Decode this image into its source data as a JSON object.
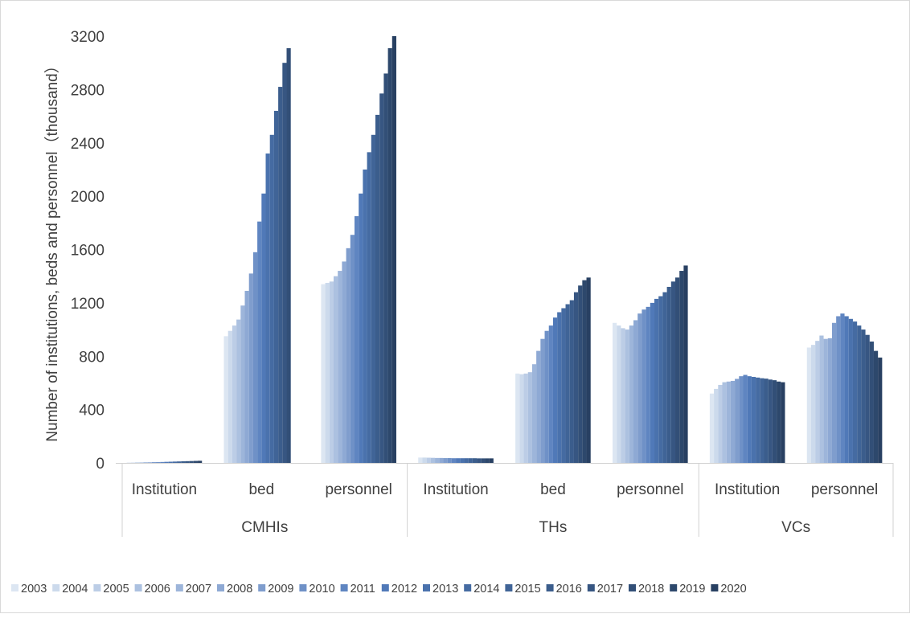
{
  "chart_data": {
    "type": "bar",
    "ylabel": "Number of institutions, beds and personnel（thousand）",
    "ylim": [
      0,
      3200
    ],
    "yticks": [
      0,
      400,
      800,
      1200,
      1600,
      2000,
      2400,
      2800,
      3200
    ],
    "grid": false,
    "legend_position": "bottom",
    "years": [
      "2003",
      "2004",
      "2005",
      "2006",
      "2007",
      "2008",
      "2009",
      "2010",
      "2011",
      "2012",
      "2013",
      "2014",
      "2015",
      "2016",
      "2017",
      "2018",
      "2019",
      "2020"
    ],
    "year_colors": [
      "#dce6f2",
      "#ccdaec",
      "#bccde6",
      "#acc1e0",
      "#9db5da",
      "#8ea9d4",
      "#7f9dcd",
      "#6f91c7",
      "#5f85c1",
      "#5079b8",
      "#4a72ad",
      "#456ba2",
      "#406497",
      "#3b5d8c",
      "#375682",
      "#324f77",
      "#2d486c",
      "#284062"
    ],
    "groups": [
      {
        "name": "CMHIs",
        "categories": [
          {
            "label": "Institution",
            "values": [
              3,
              3,
              4,
              4,
              5,
              5,
              6,
              6,
              7,
              8,
              9,
              10,
              11,
              12,
              13,
              14,
              15,
              16
            ]
          },
          {
            "label": "bed",
            "values": [
              950,
              990,
              1030,
              1075,
              1180,
              1290,
              1420,
              1580,
              1810,
              2020,
              2320,
              2460,
              2640,
              2820,
              3000,
              3110,
              null,
              null
            ]
          },
          {
            "label": "personnel",
            "values": [
              1340,
              1350,
              1360,
              1400,
              1440,
              1510,
              1610,
              1710,
              1850,
              2020,
              2200,
              2330,
              2460,
              2610,
              2770,
              2920,
              3110,
              3200
            ]
          }
        ]
      },
      {
        "name": "THs",
        "categories": [
          {
            "label": "Institution",
            "values": [
              40,
              40,
              39,
              38,
              37,
              37,
              36,
              36,
              35,
              35,
              35,
              35,
              35,
              35,
              34,
              34,
              34,
              34
            ]
          },
          {
            "label": "bed",
            "values": [
              670,
              665,
              670,
              680,
              740,
              840,
              930,
              990,
              1030,
              1090,
              1130,
              1160,
              1190,
              1220,
              1280,
              1330,
              1370,
              1390
            ]
          },
          {
            "label": "personnel",
            "values": [
              1050,
              1030,
              1010,
              1000,
              1030,
              1070,
              1120,
              1150,
              1170,
              1200,
              1230,
              1250,
              1280,
              1320,
              1360,
              1390,
              1440,
              1480
            ]
          }
        ]
      },
      {
        "name": "VCs",
        "categories": [
          {
            "label": "Institution",
            "values": [
              520,
              555,
              585,
              605,
              610,
              615,
              630,
              650,
              660,
              650,
              645,
              640,
              635,
              632,
              625,
              620,
              610,
              605
            ]
          },
          {
            "label": "personnel",
            "values": [
              865,
              885,
              915,
              955,
              930,
              935,
              1050,
              1100,
              1120,
              1100,
              1080,
              1060,
              1030,
              1000,
              960,
              910,
              840,
              790
            ]
          }
        ]
      }
    ]
  }
}
